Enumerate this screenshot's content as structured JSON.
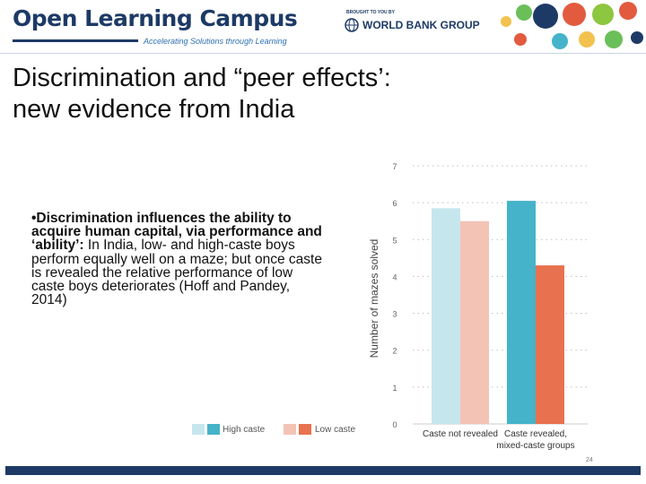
{
  "header": {
    "brand_title": "Open Learning Campus",
    "brand_tagline": "Accelerating Solutions through Learning",
    "brought_by": "BROUGHT TO YOU BY",
    "partner_name": "WORLD BANK GROUP"
  },
  "slide": {
    "title_line1": "Discrimination and “peer effects’:",
    "title_line2": "new evidence from India",
    "bullet_bold": "•Discrimination influences the ability to acquire human capital, via performance and ‘ability’:",
    "bullet_rest": " In India, low- and high-caste boys perform equally well on a maze;  but once caste is revealed the relative performance of low caste boys deteriorates (Hoff and Pandey, 2014)"
  },
  "footer": {
    "page_number": "24"
  },
  "colors": {
    "brand_navy": "#1d3a66",
    "high_caste_light": "#c6e6ed",
    "high_caste_dark": "#45b3c9",
    "low_caste_light": "#f3c3b6",
    "low_caste_dark": "#e8714f",
    "grid": "#bfbfbf"
  },
  "chart_data": {
    "type": "bar",
    "ylabel": "Number of mazes solved",
    "ylim": [
      0,
      7
    ],
    "yticks": [
      0,
      1,
      2,
      3,
      4,
      5,
      6,
      7
    ],
    "grid": true,
    "categories": [
      "Caste not revealed",
      "Caste revealed, mixed-caste groups"
    ],
    "series": [
      {
        "name": "High caste",
        "values": [
          5.85,
          6.05
        ]
      },
      {
        "name": "Low caste",
        "values": [
          5.5,
          4.3
        ]
      }
    ],
    "legend": [
      "High caste",
      "Low caste"
    ],
    "legend_position": "bottom-left"
  }
}
